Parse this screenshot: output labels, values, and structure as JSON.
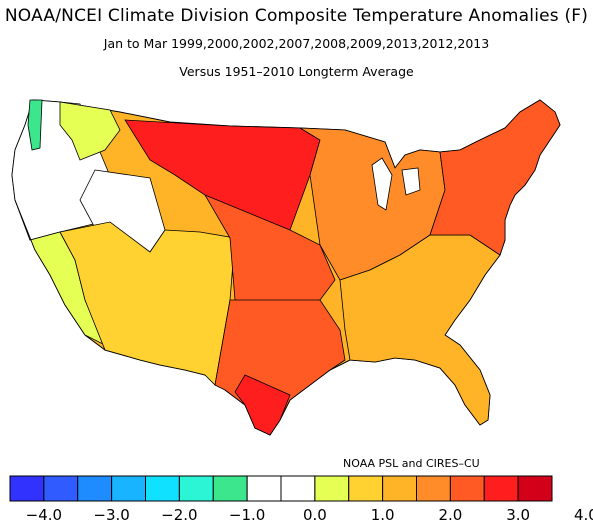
{
  "header": {
    "title": "NOAA/NCEI Climate Division Composite Temperature Anomalies (F)",
    "subtitle": "Jan to Mar  1999,2000,2002,2007,2008,2009,2013,2012,2013",
    "subtitle2": "Versus 1951–2010 Longterm Average"
  },
  "credit": "NOAA PSL and CIRES–CU",
  "colorbar": {
    "colors": [
      "#3232ff",
      "#2f5bff",
      "#1e8cff",
      "#19b4ff",
      "#0fe1ff",
      "#2cf5d6",
      "#3ce68c",
      "#ffffff",
      "#ffffff",
      "#e6ff55",
      "#ffd232",
      "#ffb428",
      "#ff8c28",
      "#ff5a23",
      "#ff1e1e",
      "#d20019"
    ],
    "tick_labels": [
      "−4.0",
      "−3.0",
      "−2.0",
      "−1.0",
      "0.0",
      "1.0",
      "2.0",
      "3.0",
      "4.0"
    ]
  },
  "map": {
    "regions": [
      {
        "name": "northwest-coast",
        "color": "#ffffff"
      },
      {
        "name": "puget-sound",
        "color": "#3ce68c"
      },
      {
        "name": "inland-northwest",
        "color": "#e6ff55"
      },
      {
        "name": "great-basin",
        "color": "#ffffff"
      },
      {
        "name": "california",
        "color": "#e6ff55"
      },
      {
        "name": "southwest",
        "color": "#ffd232"
      },
      {
        "name": "northern-plains",
        "color": "#ff1e1e"
      },
      {
        "name": "central-plains",
        "color": "#ff5a23"
      },
      {
        "name": "texas",
        "color": "#ff5a23"
      },
      {
        "name": "south-texas",
        "color": "#ff1e1e"
      },
      {
        "name": "midwest",
        "color": "#ff8c28"
      },
      {
        "name": "southeast",
        "color": "#ffb428"
      },
      {
        "name": "northeast",
        "color": "#ff5a23"
      }
    ]
  }
}
